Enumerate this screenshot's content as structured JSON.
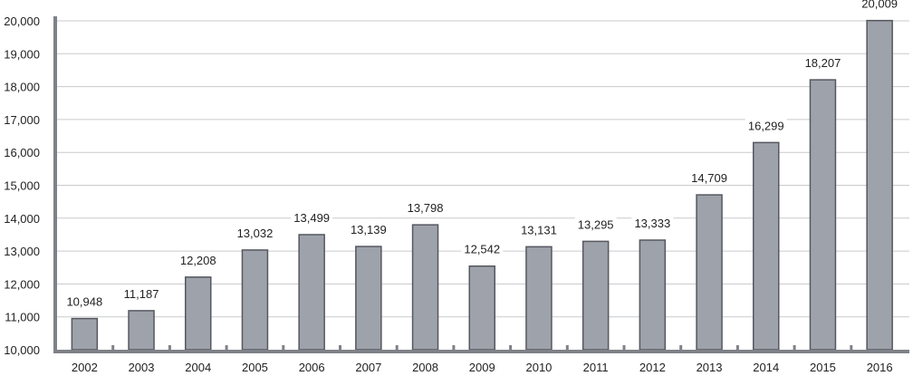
{
  "chart_data": {
    "type": "bar",
    "categories": [
      "2002",
      "2003",
      "2004",
      "2005",
      "2006",
      "2007",
      "2008",
      "2009",
      "2010",
      "2011",
      "2012",
      "2013",
      "2014",
      "2015",
      "2016"
    ],
    "values": [
      10948,
      11187,
      12208,
      13032,
      13499,
      13139,
      13798,
      12542,
      13131,
      13295,
      13333,
      14709,
      16299,
      18207,
      20009
    ],
    "value_labels": [
      "10,948",
      "11,187",
      "12,208",
      "13,032",
      "13,499",
      "13,139",
      "13,798",
      "12,542",
      "13,131",
      "13,295",
      "13,333",
      "14,709",
      "16,299",
      "18,207",
      "20,009"
    ],
    "y_ticks": [
      10000,
      11000,
      12000,
      13000,
      14000,
      15000,
      16000,
      17000,
      18000,
      19000,
      20000
    ],
    "y_tick_labels": [
      "10,000",
      "11,000",
      "12,000",
      "13,000",
      "14,000",
      "15,000",
      "16,000",
      "17,000",
      "18,000",
      "19,000",
      "20,000"
    ],
    "ylim": [
      10000,
      20000
    ],
    "grid": true,
    "legend": "none",
    "colors": {
      "bar_fill": "#9ea2ab",
      "bar_stroke": "#55585f",
      "axis": "#7f8188",
      "grid": "#c9cacd"
    }
  }
}
